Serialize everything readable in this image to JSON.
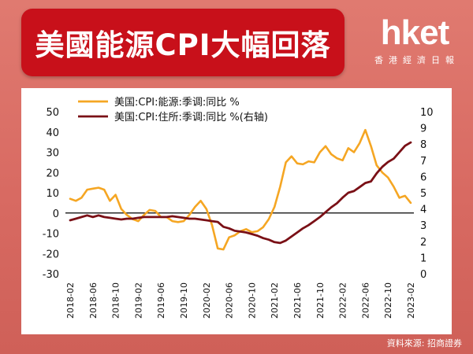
{
  "header": {
    "title": "美國能源CPI大幅回落",
    "logo_text": "hket",
    "logo_subtext": "香港經濟日報"
  },
  "source": "資料來源: 招商證券",
  "colors": {
    "energy_series": "#f5a623",
    "shelter_series": "#7a1016",
    "title_bg": "#c8101a"
  },
  "chart_data": {
    "type": "line",
    "left_axis": {
      "min": -30,
      "max": 50,
      "ticks": [
        50,
        40,
        30,
        20,
        10,
        0,
        -10,
        -20,
        -30
      ]
    },
    "right_axis": {
      "min": 0,
      "max": 10,
      "ticks": [
        10,
        9,
        8,
        7,
        6,
        5,
        4,
        3,
        2,
        1,
        0
      ]
    },
    "x_tick_labels": [
      "2018-02",
      "2018-06",
      "2018-10",
      "2019-02",
      "2019-06",
      "2019-10",
      "2020-02",
      "2020-06",
      "2020-10",
      "2021-02",
      "2021-06",
      "2021-10",
      "2022-02",
      "2022-06",
      "2022-10",
      "2023-02"
    ],
    "legend_placement": "top-left",
    "series": [
      {
        "name": "美国:CPI:能源:季调:同比 %",
        "axis": "left",
        "points": [
          [
            "2018-02",
            7
          ],
          [
            "2018-03",
            6
          ],
          [
            "2018-04",
            7.5
          ],
          [
            "2018-05",
            11.5
          ],
          [
            "2018-06",
            12
          ],
          [
            "2018-07",
            12.5
          ],
          [
            "2018-08",
            11.5
          ],
          [
            "2018-09",
            6
          ],
          [
            "2018-10",
            9
          ],
          [
            "2018-11",
            2
          ],
          [
            "2018-12",
            -1
          ],
          [
            "2019-01",
            -3
          ],
          [
            "2019-02",
            -4
          ],
          [
            "2019-03",
            -1
          ],
          [
            "2019-04",
            1.5
          ],
          [
            "2019-05",
            1
          ],
          [
            "2019-06",
            -2
          ],
          [
            "2019-07",
            -2
          ],
          [
            "2019-08",
            -4
          ],
          [
            "2019-09",
            -4.5
          ],
          [
            "2019-10",
            -4
          ],
          [
            "2019-11",
            -1
          ],
          [
            "2019-12",
            3
          ],
          [
            "2020-01",
            6
          ],
          [
            "2020-02",
            2
          ],
          [
            "2020-03",
            -6
          ],
          [
            "2020-04",
            -17.5
          ],
          [
            "2020-05",
            -18
          ],
          [
            "2020-06",
            -12
          ],
          [
            "2020-07",
            -11
          ],
          [
            "2020-08",
            -9
          ],
          [
            "2020-09",
            -8
          ],
          [
            "2020-10",
            -9.5
          ],
          [
            "2020-11",
            -9
          ],
          [
            "2020-12",
            -7
          ],
          [
            "2021-01",
            -3
          ],
          [
            "2021-02",
            3
          ],
          [
            "2021-03",
            13
          ],
          [
            "2021-04",
            25
          ],
          [
            "2021-05",
            28
          ],
          [
            "2021-06",
            24.5
          ],
          [
            "2021-07",
            24
          ],
          [
            "2021-08",
            25.5
          ],
          [
            "2021-09",
            25
          ],
          [
            "2021-10",
            30
          ],
          [
            "2021-11",
            33
          ],
          [
            "2021-12",
            29
          ],
          [
            "2022-01",
            27
          ],
          [
            "2022-02",
            26
          ],
          [
            "2022-03",
            32
          ],
          [
            "2022-04",
            30
          ],
          [
            "2022-05",
            34.5
          ],
          [
            "2022-06",
            41
          ],
          [
            "2022-07",
            33
          ],
          [
            "2022-08",
            23.5
          ],
          [
            "2022-09",
            20
          ],
          [
            "2022-10",
            17.5
          ],
          [
            "2022-11",
            13
          ],
          [
            "2022-12",
            7.5
          ],
          [
            "2023-01",
            8.5
          ],
          [
            "2023-02",
            5
          ]
        ]
      },
      {
        "name": "美国:CPI:住所:季调:同比 %(右轴)",
        "axis": "right",
        "points": [
          [
            "2018-02",
            3.3
          ],
          [
            "2018-03",
            3.4
          ],
          [
            "2018-04",
            3.5
          ],
          [
            "2018-05",
            3.6
          ],
          [
            "2018-06",
            3.5
          ],
          [
            "2018-07",
            3.6
          ],
          [
            "2018-08",
            3.5
          ],
          [
            "2018-09",
            3.45
          ],
          [
            "2018-10",
            3.4
          ],
          [
            "2018-11",
            3.35
          ],
          [
            "2018-12",
            3.4
          ],
          [
            "2019-01",
            3.4
          ],
          [
            "2019-02",
            3.45
          ],
          [
            "2019-03",
            3.5
          ],
          [
            "2019-04",
            3.5
          ],
          [
            "2019-05",
            3.5
          ],
          [
            "2019-06",
            3.5
          ],
          [
            "2019-07",
            3.5
          ],
          [
            "2019-08",
            3.55
          ],
          [
            "2019-09",
            3.5
          ],
          [
            "2019-10",
            3.45
          ],
          [
            "2019-11",
            3.4
          ],
          [
            "2019-12",
            3.4
          ],
          [
            "2020-01",
            3.35
          ],
          [
            "2020-02",
            3.3
          ],
          [
            "2020-03",
            3.25
          ],
          [
            "2020-04",
            3.2
          ],
          [
            "2020-05",
            2.9
          ],
          [
            "2020-06",
            2.8
          ],
          [
            "2020-07",
            2.65
          ],
          [
            "2020-08",
            2.6
          ],
          [
            "2020-09",
            2.55
          ],
          [
            "2020-10",
            2.45
          ],
          [
            "2020-11",
            2.35
          ],
          [
            "2020-12",
            2.2
          ],
          [
            "2021-01",
            2.1
          ],
          [
            "2021-02",
            1.95
          ],
          [
            "2021-03",
            1.9
          ],
          [
            "2021-04",
            2.05
          ],
          [
            "2021-05",
            2.3
          ],
          [
            "2021-06",
            2.55
          ],
          [
            "2021-07",
            2.8
          ],
          [
            "2021-08",
            3.0
          ],
          [
            "2021-09",
            3.25
          ],
          [
            "2021-10",
            3.5
          ],
          [
            "2021-11",
            3.8
          ],
          [
            "2021-12",
            4.1
          ],
          [
            "2022-01",
            4.35
          ],
          [
            "2022-02",
            4.7
          ],
          [
            "2022-03",
            5.0
          ],
          [
            "2022-04",
            5.1
          ],
          [
            "2022-05",
            5.35
          ],
          [
            "2022-06",
            5.6
          ],
          [
            "2022-07",
            5.7
          ],
          [
            "2022-08",
            6.2
          ],
          [
            "2022-09",
            6.6
          ],
          [
            "2022-10",
            6.9
          ],
          [
            "2022-11",
            7.1
          ],
          [
            "2022-12",
            7.5
          ],
          [
            "2023-01",
            7.9
          ],
          [
            "2023-02",
            8.1
          ]
        ]
      }
    ]
  }
}
